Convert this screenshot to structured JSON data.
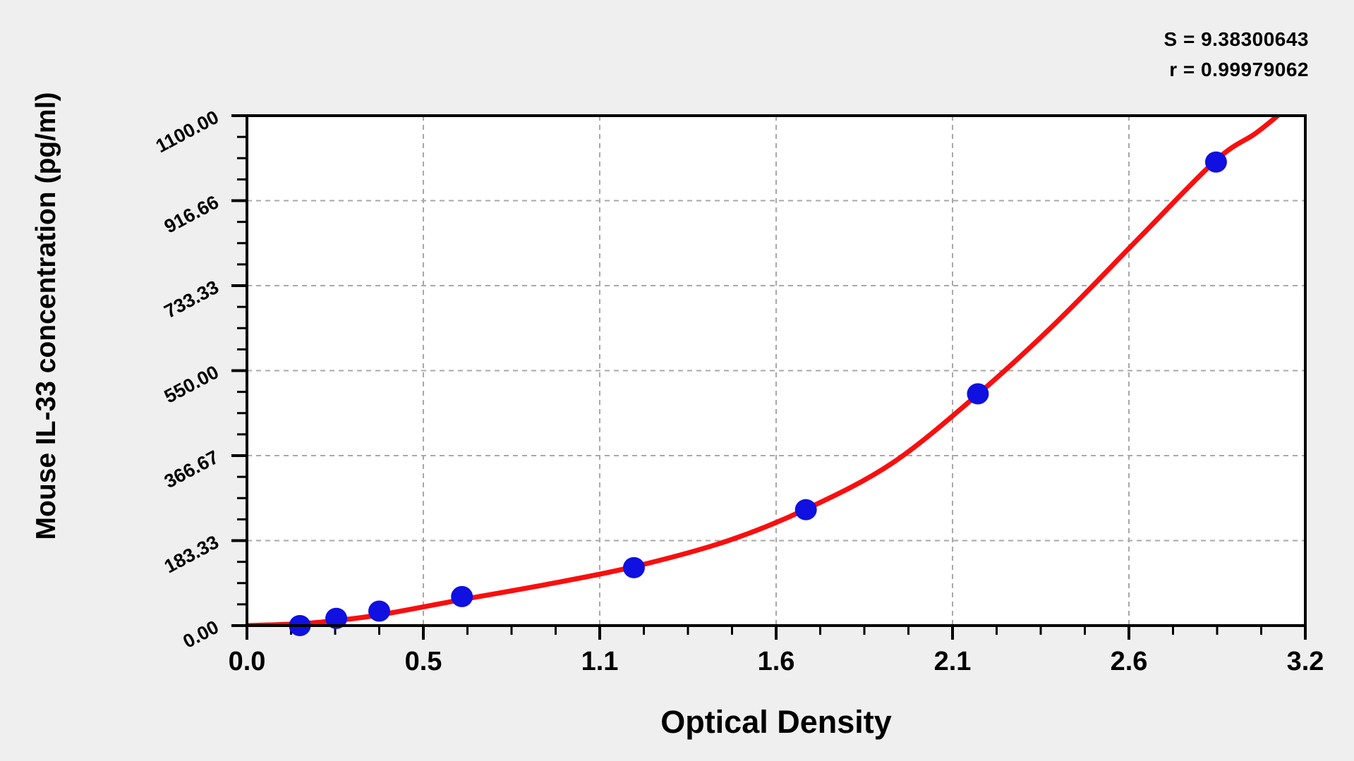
{
  "header": {
    "s_label": "S = 9.38300643",
    "r_label": "r = 0.99979062"
  },
  "chart_data": {
    "type": "scatter",
    "title": "",
    "xlabel": "Optical Density",
    "ylabel": "Mouse IL-33 concentration (pg/ml)",
    "xlim": [
      0,
      3.2
    ],
    "ylim": [
      0,
      1100
    ],
    "x_tick_labels": [
      "0.0",
      "0.5",
      "1.1",
      "1.6",
      "2.1",
      "2.6",
      "3.2"
    ],
    "y_tick_labels": [
      "0.00",
      "183.33",
      "366.67",
      "550.00",
      "733.33",
      "916.66",
      "1100.00"
    ],
    "x_minor_divisions": 4,
    "y_minor_divisions": 4,
    "grid": "dashed-major",
    "legend": "none",
    "fit_stats": {
      "S": 9.38300643,
      "r": 0.99979062
    },
    "series": [
      {
        "name": "standard-points",
        "type": "scatter",
        "color": "#1010e0",
        "points": [
          {
            "od": 0.16,
            "conc": 0
          },
          {
            "od": 0.27,
            "conc": 15.6
          },
          {
            "od": 0.4,
            "conc": 31.2
          },
          {
            "od": 0.65,
            "conc": 62.5
          },
          {
            "od": 1.17,
            "conc": 125
          },
          {
            "od": 1.69,
            "conc": 250
          },
          {
            "od": 2.21,
            "conc": 500
          },
          {
            "od": 2.93,
            "conc": 1000
          }
        ]
      },
      {
        "name": "fitted-curve",
        "type": "line",
        "color": "#f80f0f",
        "points": [
          {
            "od": 0.0,
            "conc": 0
          },
          {
            "od": 0.16,
            "conc": 4
          },
          {
            "od": 0.27,
            "conc": 11
          },
          {
            "od": 0.4,
            "conc": 23
          },
          {
            "od": 0.65,
            "conc": 56
          },
          {
            "od": 0.9,
            "conc": 88
          },
          {
            "od": 1.17,
            "conc": 127
          },
          {
            "od": 1.45,
            "conc": 182
          },
          {
            "od": 1.69,
            "conc": 251
          },
          {
            "od": 1.95,
            "conc": 350
          },
          {
            "od": 2.21,
            "conc": 499
          },
          {
            "od": 2.45,
            "conc": 656
          },
          {
            "od": 2.7,
            "conc": 838
          },
          {
            "od": 2.93,
            "conc": 1004
          },
          {
            "od": 3.05,
            "conc": 1062
          },
          {
            "od": 3.13,
            "conc": 1108
          }
        ]
      }
    ]
  },
  "colors": {
    "background": "#efefef",
    "plot_background": "#ffffff",
    "axis": "#000000",
    "grid": "#a8a8a8",
    "curve": "#f80f0f",
    "points": "#1010e0"
  }
}
